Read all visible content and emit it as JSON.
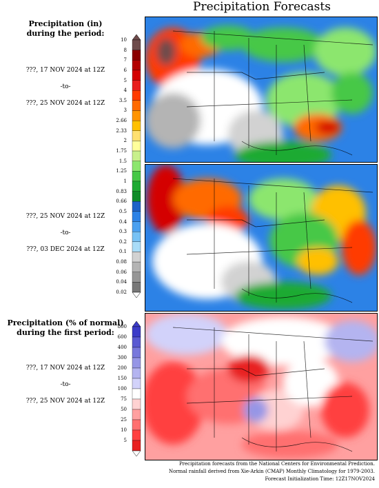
{
  "title": "Precipitation Forecasts",
  "legend_top": {
    "heading_line1": "Precipitation (in)",
    "heading_line2": "during the period:",
    "ticks": [
      "10",
      "8",
      "7",
      "6",
      "5",
      "4",
      "3.5",
      "3",
      "2.66",
      "2.33",
      "2",
      "1.75",
      "1.5",
      "1.25",
      "1",
      "0.83",
      "0.66",
      "0.5",
      "0.4",
      "0.3",
      "0.2",
      "0.1",
      "0.08",
      "0.06",
      "0.04",
      "0.02"
    ],
    "colors": [
      "#6e4b4b",
      "#8b0000",
      "#b30000",
      "#d40000",
      "#e81e1e",
      "#ff3b00",
      "#ff6a00",
      "#ff9400",
      "#ffc000",
      "#ffe070",
      "#ffff9c",
      "#c8f08c",
      "#8ce66e",
      "#46c846",
      "#1eaa32",
      "#0f8c28",
      "#1e64c8",
      "#2c82e6",
      "#4aa0f0",
      "#78c2f5",
      "#a9dcf8",
      "#d2d2d2",
      "#b4b4b4",
      "#969696",
      "#787878"
    ]
  },
  "legend_bottom": {
    "heading_line1": "Precipitation (% of normal)",
    "heading_line2": "during the first period:",
    "ticks": [
      "800",
      "600",
      "400",
      "300",
      "200",
      "150",
      "100",
      "75",
      "50",
      "25",
      "10",
      "5"
    ],
    "colors": [
      "#3c3cc8",
      "#5a5ad2",
      "#7878dc",
      "#9696e6",
      "#b4b4f0",
      "#d2d2fa",
      "#ffffff",
      "#ffd2d2",
      "#ffa0a0",
      "#ff7070",
      "#ff4040",
      "#e82020"
    ]
  },
  "periods": [
    {
      "start": "???, 17 NOV 2024 at 12Z",
      "sep": "-to-",
      "end": "???, 25 NOV 2024 at 12Z"
    },
    {
      "start": "???, 25 NOV 2024 at 12Z",
      "sep": "-to-",
      "end": "???, 03 DEC 2024 at 12Z"
    },
    {
      "start": "???, 17 NOV 2024 at 12Z",
      "sep": "-to-",
      "end": "???, 25 NOV 2024 at 12Z"
    }
  ],
  "footer": {
    "line1": "Precipitation forecasts from the National Centers for Environmental Prediction.",
    "line2": "Normal rainfall derived from Xie-Arkin (CMAP) Monthly Climatology for 1979-2003.",
    "line3": "Forecast Initialization Time: 12Z17NOV2024"
  }
}
